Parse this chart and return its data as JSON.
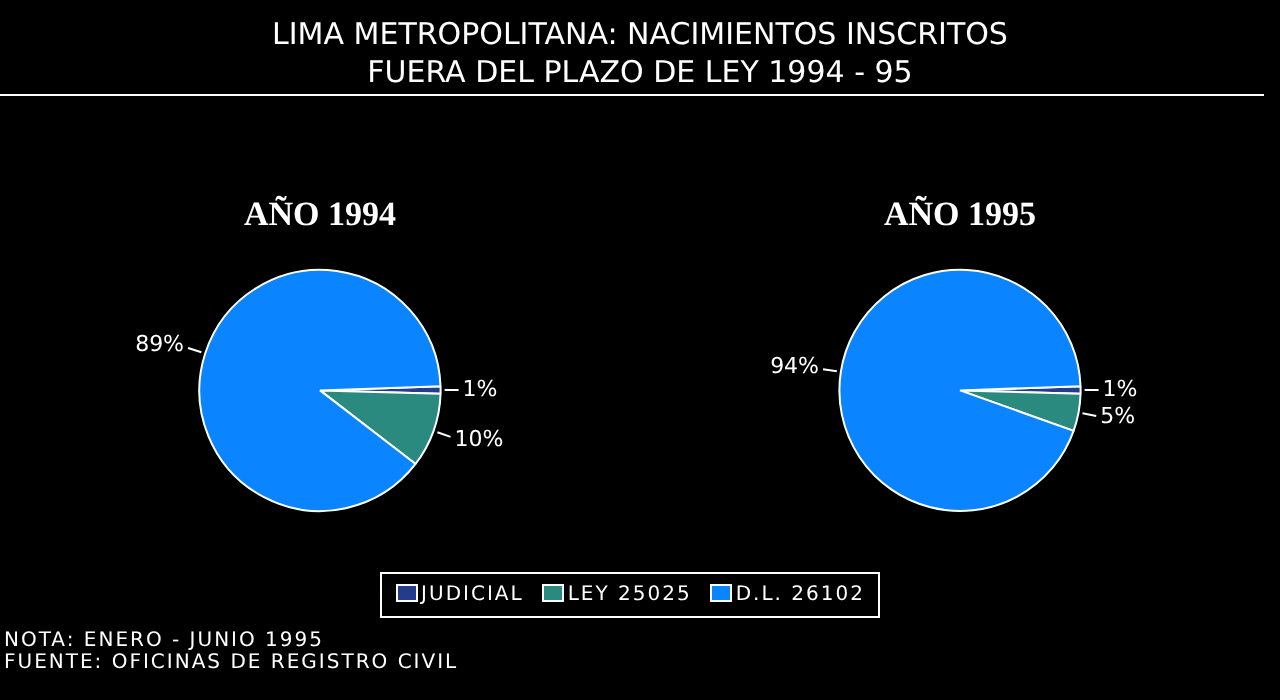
{
  "chart_data": [
    {
      "type": "other",
      "title": "LIMA METROPOLITANA: NACIMIENTOS INSCRITOS\nFUERA DEL PLAZO DE LEY 1994 - 95",
      "annotations": [
        "NOTA: ENERO - JUNIO 1995",
        "FUENTE: OFICINAS DE REGISTRO CIVIL"
      ]
    },
    {
      "type": "pie",
      "title": "AÑO 1994",
      "categories": [
        "JUDICIAL",
        "LEY 25025",
        "D.L. 26102"
      ],
      "values": [
        1,
        10,
        89
      ],
      "colors": [
        "#243c8c",
        "#2a8a80",
        "#0a84ff"
      ],
      "value_labels": [
        "1%",
        "10%",
        "89%"
      ],
      "legend": "bottom"
    },
    {
      "type": "pie",
      "title": "AÑO 1995",
      "categories": [
        null,
        null,
        null
      ],
      "values": [
        1,
        5,
        94
      ],
      "colors": [
        "#243c8c",
        "#2a8a80",
        "#0a84ff"
      ],
      "value_labels": [
        "1%",
        "5%",
        "94%"
      ]
    }
  ]
}
